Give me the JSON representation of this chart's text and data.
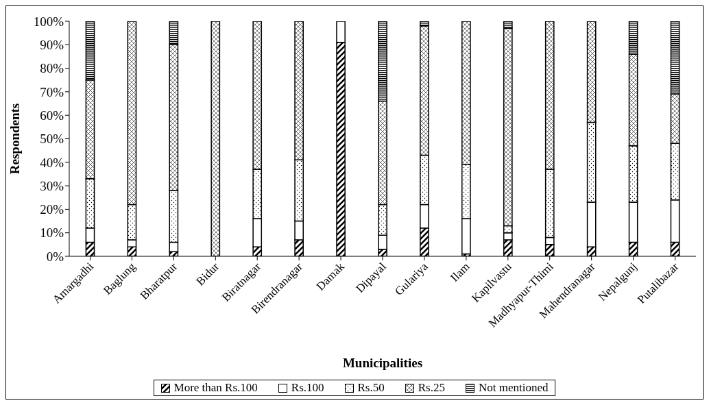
{
  "chart_data": {
    "type": "bar",
    "stacked": true,
    "xlabel": "Municipalities",
    "ylabel": "Respondents",
    "categories": [
      "Amargadhi",
      "Baglung",
      "Bharatpur",
      "Bidur",
      "Biratnagar",
      "Birendranagar",
      "Damak",
      "Dipayal",
      "Gulariya",
      "Ilam",
      "Kapilvastu",
      "Madhyapur-Thimi",
      "Mahendranagar",
      "Nepalgunj",
      "Putalibazar"
    ],
    "series": [
      {
        "name": "More than Rs.100",
        "color": "#000000",
        "values": [
          6,
          4,
          2,
          0,
          4,
          7,
          91,
          3,
          12,
          1,
          7,
          5,
          4,
          6,
          6
        ]
      },
      {
        "name": "Rs.100",
        "color": "#000000",
        "values": [
          6,
          3,
          4,
          0,
          12,
          8,
          9,
          6,
          10,
          15,
          3,
          3,
          19,
          17,
          18
        ]
      },
      {
        "name": "Rs.50",
        "color": "#000000",
        "values": [
          21,
          15,
          22,
          0,
          21,
          26,
          0,
          13,
          21,
          23,
          3,
          29,
          34,
          24,
          24
        ]
      },
      {
        "name": "Rs.25",
        "color": "#000000",
        "values": [
          42,
          78,
          62,
          100,
          63,
          59,
          0,
          44,
          55,
          61,
          84,
          63,
          43,
          39,
          21
        ]
      },
      {
        "name": "Not mentioned",
        "color": "#000000",
        "values": [
          25,
          0,
          10,
          0,
          0,
          0,
          0,
          34,
          2,
          0,
          3,
          0,
          0,
          14,
          31
        ]
      }
    ],
    "ylim": [
      0,
      100
    ],
    "yticks": [
      {
        "value": 0,
        "label": "0%"
      },
      {
        "value": 10,
        "label": "10%"
      },
      {
        "value": 20,
        "label": "20%"
      },
      {
        "value": 30,
        "label": "30%"
      },
      {
        "value": 40,
        "label": "40%"
      },
      {
        "value": 50,
        "label": "50%"
      },
      {
        "value": 60,
        "label": "60%"
      },
      {
        "value": 70,
        "label": "70%"
      },
      {
        "value": 80,
        "label": "80%"
      },
      {
        "value": 90,
        "label": "90%"
      },
      {
        "value": 100,
        "label": "100%"
      }
    ],
    "grid": false,
    "legend": "bottom"
  }
}
